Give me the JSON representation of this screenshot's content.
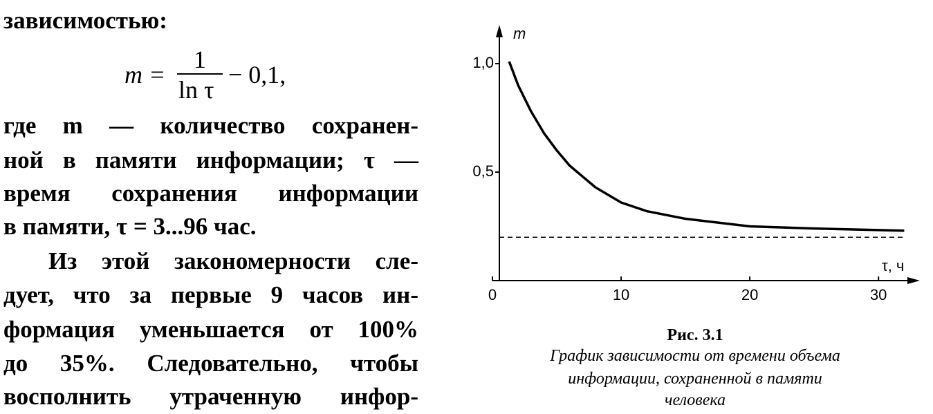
{
  "text_lines": [
    "зависимостью:",
    "где m — количество сохранен-",
    "ной в памяти информации; τ —",
    "время сохранения информации",
    "в памяти, τ = 3...96 час.",
    "Из этой закономерности сле-",
    "дует, что за первые 9 часов ин-",
    "формация уменьшается от 100%",
    "до 35%. Следовательно, чтобы",
    "восполнить утраченную инфор-"
  ],
  "formula": {
    "lhs": "m =",
    "numerator": "1",
    "denominator": "ln τ",
    "rhs": "− 0,1,"
  },
  "chart_data": {
    "type": "line",
    "x": [
      1.3,
      2,
      3,
      4,
      5,
      6,
      7,
      8,
      10,
      12,
      15,
      20,
      25,
      32
    ],
    "series": [
      {
        "color": "#000000",
        "values": [
          1.01,
          0.9,
          0.78,
          0.68,
          0.6,
          0.53,
          0.48,
          0.43,
          0.36,
          0.32,
          0.285,
          0.25,
          0.24,
          0.23
        ]
      }
    ],
    "asymptote": 0.2,
    "xlim": [
      0,
      33
    ],
    "ylim": [
      0,
      1.15
    ],
    "xticks": [
      0,
      10,
      20,
      30
    ],
    "yticks": [
      {
        "value": 0.5,
        "label": "0,5"
      },
      {
        "value": 1,
        "label": "1,0"
      }
    ],
    "xlabel": "τ, ч",
    "ylabel": "m"
  },
  "caption": {
    "label": "Рис. 3.1",
    "lines": [
      "График зависимости от времени объема",
      "информации, сохраненной в памяти",
      "человека"
    ]
  }
}
